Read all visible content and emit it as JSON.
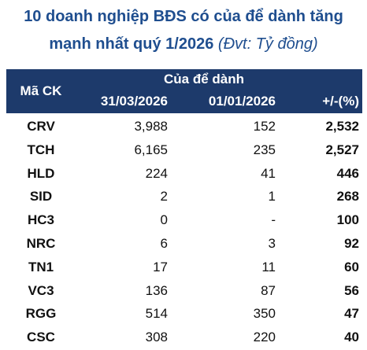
{
  "title": {
    "line1": "10 doanh nghiệp BĐS có của để dành tăng",
    "line2": "mạnh nhất quý 1/2026",
    "unit": "(Đvt: Tỷ đồng)"
  },
  "table": {
    "header": {
      "code": "Mã CK",
      "group": "Của để dành",
      "columns": [
        "31/03/2026",
        "01/01/2026",
        "+/-(%)"
      ]
    },
    "rows": [
      [
        "CRV",
        "3,988",
        "152",
        "2,532"
      ],
      [
        "TCH",
        "6,165",
        "235",
        "2,527"
      ],
      [
        "HLD",
        "224",
        "41",
        "446"
      ],
      [
        "SID",
        "2",
        "1",
        "268"
      ],
      [
        "HC3",
        "0",
        "-",
        "100"
      ],
      [
        "NRC",
        "6",
        "3",
        "92"
      ],
      [
        "TN1",
        "17",
        "11",
        "60"
      ],
      [
        "VC3",
        "136",
        "87",
        "56"
      ],
      [
        "RGG",
        "514",
        "350",
        "47"
      ],
      [
        "CSC",
        "308",
        "220",
        "40"
      ]
    ]
  }
}
